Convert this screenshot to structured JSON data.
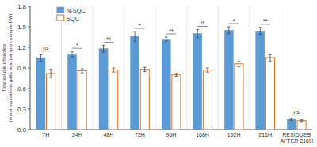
{
  "chart_data": {
    "type": "bar",
    "categories": [
      "7H",
      "24H",
      "48H",
      "72H",
      "96H",
      "168H",
      "192H",
      "216H",
      "RESIDUES\nAFTER 216H"
    ],
    "series": [
      {
        "name": "N-SQC",
        "color": "#5B9BD5",
        "values": [
          1.05,
          1.1,
          1.18,
          1.36,
          1.32,
          1.4,
          1.45,
          1.44,
          0.15
        ],
        "errors": [
          0.05,
          0.04,
          0.05,
          0.07,
          0.03,
          0.06,
          0.05,
          0.05,
          0.015
        ]
      },
      {
        "name": "SQC",
        "color": "#E07020",
        "values": [
          0.82,
          0.86,
          0.87,
          0.88,
          0.8,
          0.87,
          0.96,
          1.05,
          0.13
        ],
        "errors": [
          0.06,
          0.03,
          0.03,
          0.03,
          0.02,
          0.03,
          0.04,
          0.05,
          0.012
        ]
      }
    ],
    "annotations": [
      "ns",
      "*",
      "**",
      "*",
      "**",
      "**",
      "*",
      "**",
      "ns"
    ],
    "ylabel": "Total soluble phenolics\n(mmol equivalents gallic acid per gram sample DW)",
    "ylim": [
      0.0,
      1.8
    ],
    "yticks": [
      {
        "value": 0.0,
        "label": "0.0"
      },
      0.3,
      0.6,
      0.9,
      1.2,
      1.5,
      1.8
    ],
    "legend": "upper left"
  }
}
